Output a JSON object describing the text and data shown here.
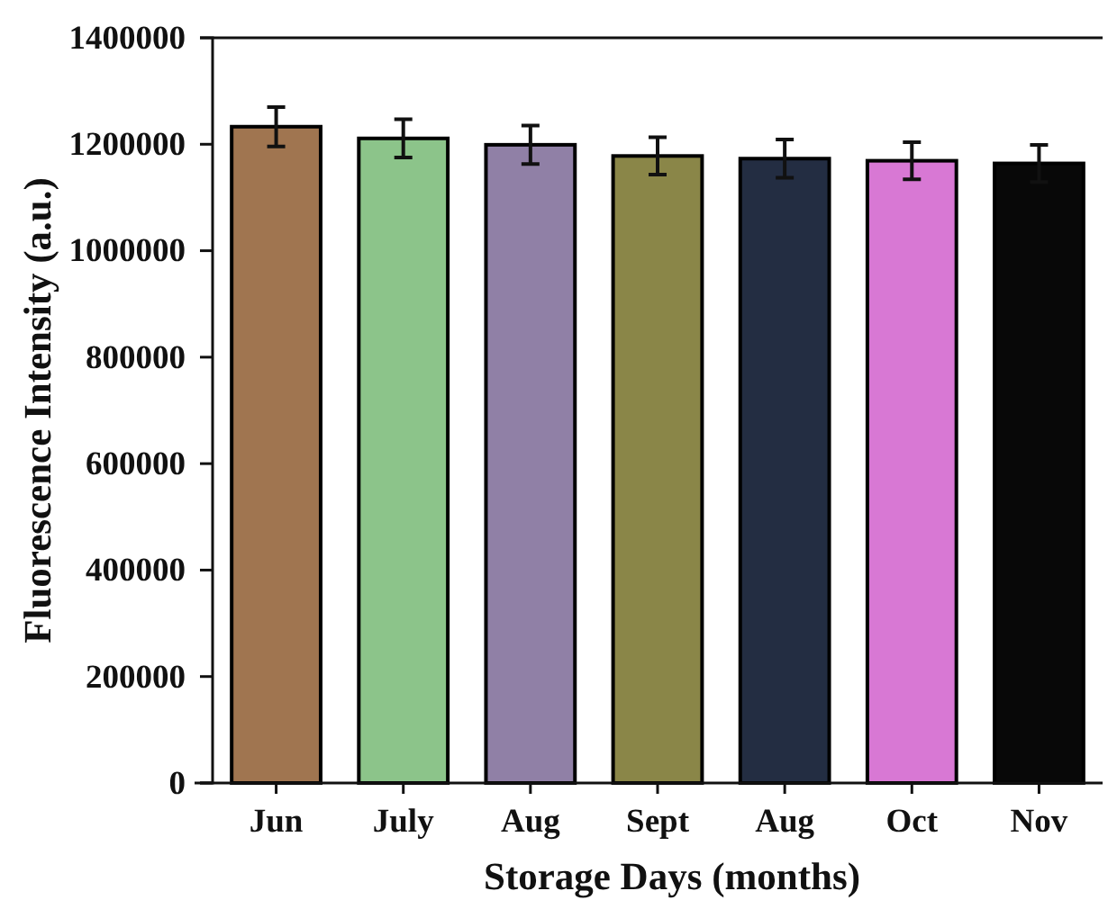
{
  "chart_data": {
    "type": "bar",
    "xlabel": "Storage Days (months)",
    "ylabel": "Fluorescence Intensity (a.u.)",
    "categories": [
      "Jun",
      "July",
      "Aug",
      "Sept",
      "Aug",
      "Oct",
      "Nov"
    ],
    "values": [
      1233000,
      1211000,
      1199000,
      1178000,
      1173000,
      1169000,
      1164000
    ],
    "errors": [
      37000,
      36000,
      36000,
      35000,
      36000,
      35000,
      35000
    ],
    "colors": [
      "#a07550",
      "#8cc48a",
      "#9080a6",
      "#8a8648",
      "#232d42",
      "#d878d4",
      "#080808"
    ],
    "ylim": [
      0,
      1400000
    ],
    "yticks": [
      0,
      200000,
      400000,
      600000,
      800000,
      1000000,
      1200000,
      1400000
    ]
  }
}
